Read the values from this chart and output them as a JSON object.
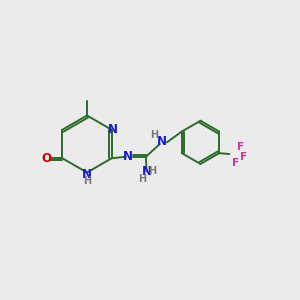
{
  "background_color": "#ebebeb",
  "bond_color": "#2d6b2d",
  "N_color": "#1a1acc",
  "O_color": "#cc0000",
  "F_color": "#cc3399",
  "H_color": "#7a7a7a",
  "figsize": [
    3.0,
    3.0
  ],
  "dpi": 100,
  "xlim": [
    0,
    10
  ],
  "ylim": [
    0,
    10
  ]
}
